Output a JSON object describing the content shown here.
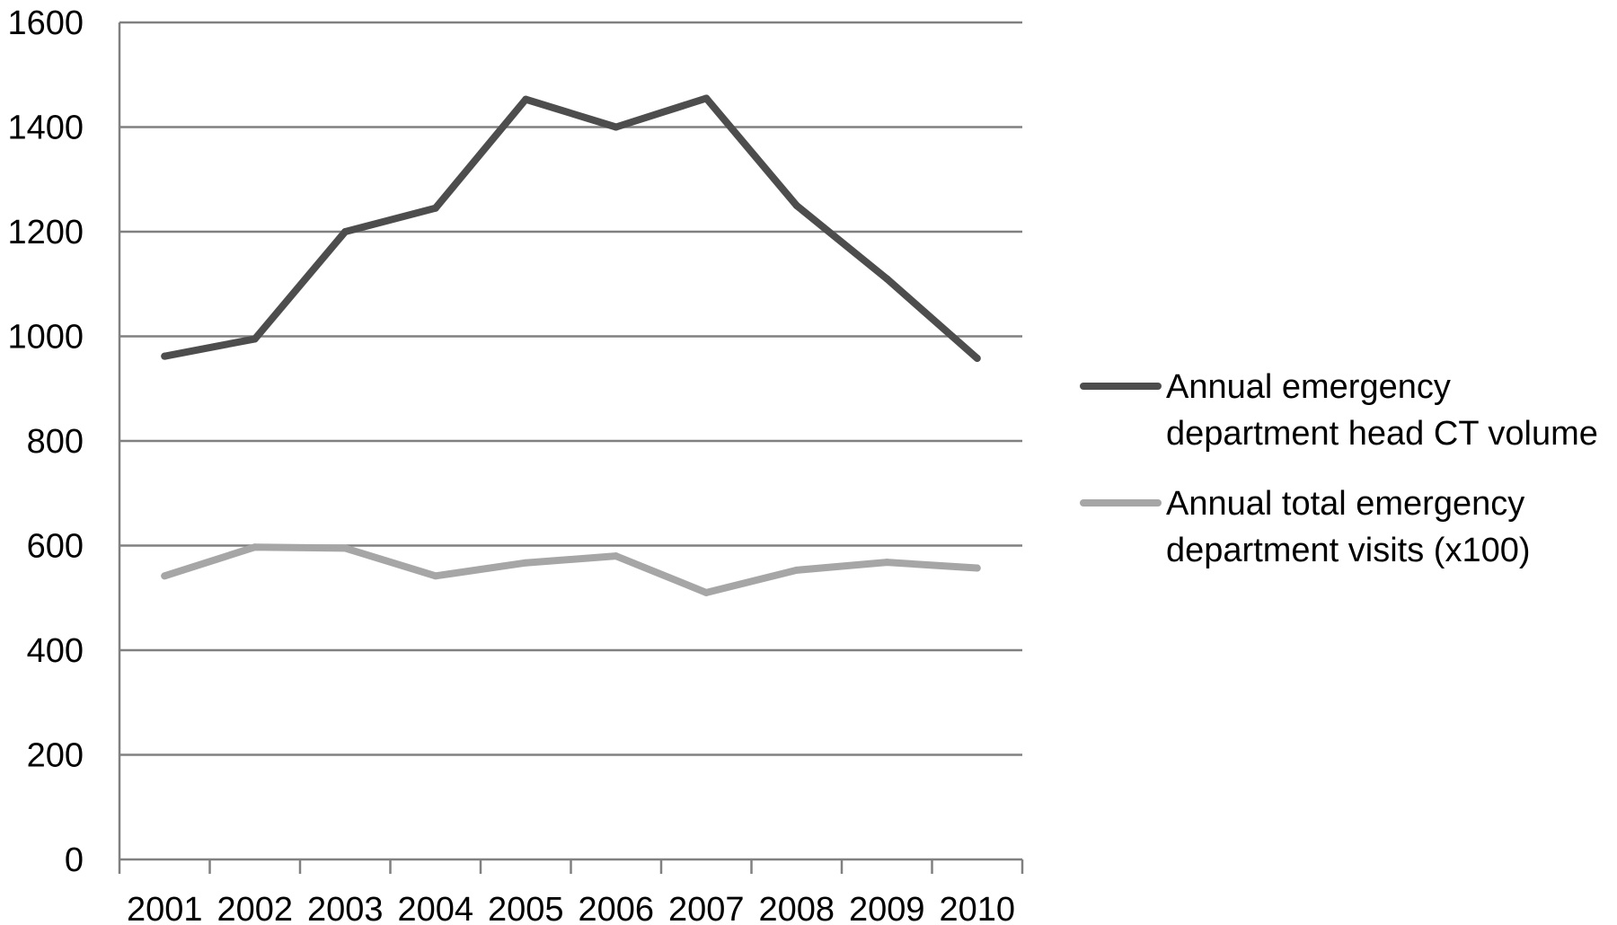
{
  "chart_data": {
    "type": "line",
    "title": "",
    "xlabel": "",
    "ylabel": "",
    "categories": [
      "2001",
      "2002",
      "2003",
      "2004",
      "2005",
      "2006",
      "2007",
      "2008",
      "2009",
      "2010"
    ],
    "ylim": [
      0,
      1600
    ],
    "yticks": [
      "0",
      "200",
      "400",
      "600",
      "800",
      "1000",
      "1200",
      "1400",
      "1600"
    ],
    "grid": true,
    "legend_position": "right",
    "series": [
      {
        "name_lines": [
          "Annual emergency",
          "department head CT volume"
        ],
        "color": "#4d4d4d",
        "values": [
          962,
          995,
          1200,
          1245,
          1453,
          1400,
          1455,
          1250,
          1110,
          958
        ]
      },
      {
        "name_lines": [
          "Annual total emergency",
          "department visits (x100)"
        ],
        "color": "#a6a6a6",
        "values": [
          542,
          597,
          595,
          542,
          567,
          580,
          510,
          553,
          568,
          557
        ]
      }
    ]
  }
}
